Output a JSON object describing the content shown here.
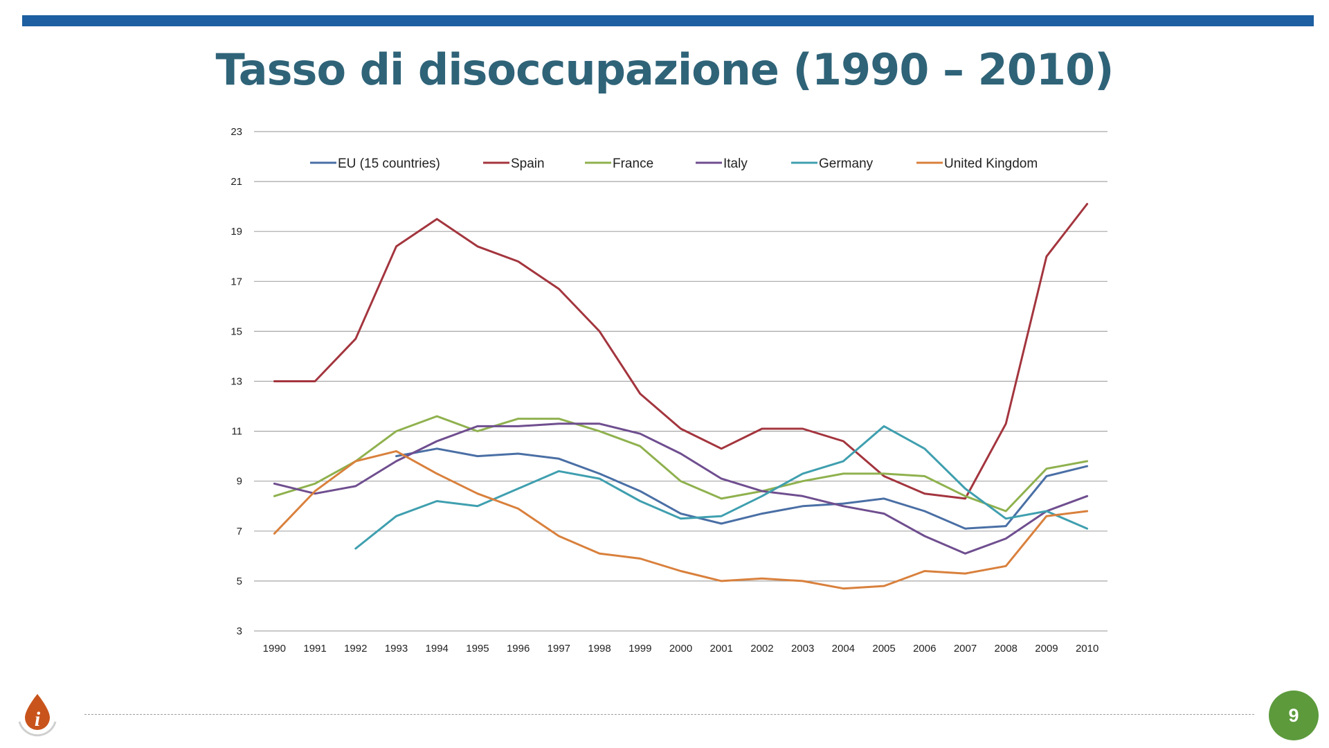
{
  "slide": {
    "title": "Tasso di disoccupazione (1990 – 2010)",
    "page_number": "9",
    "colors": {
      "top_bar": "#1d5fa0",
      "title": "#2f6378",
      "page_badge": "#5c9a3c",
      "info_icon": "#c8541c"
    },
    "icons": {
      "info": "info-icon"
    }
  },
  "chart_data": {
    "type": "line",
    "title": "",
    "xlabel": "",
    "ylabel": "",
    "categories": [
      "1990",
      "1991",
      "1992",
      "1993",
      "1994",
      "1995",
      "1996",
      "1997",
      "1998",
      "1999",
      "2000",
      "2001",
      "2002",
      "2003",
      "2004",
      "2005",
      "2006",
      "2007",
      "2008",
      "2009",
      "2010"
    ],
    "ylim": [
      3,
      23
    ],
    "yticks": [
      3,
      5,
      7,
      9,
      11,
      13,
      15,
      17,
      19,
      21,
      23
    ],
    "grid": true,
    "legend_position": "top",
    "series": [
      {
        "name": "EU (15 countries)",
        "color": "#4a6fa5",
        "values": [
          null,
          null,
          null,
          10.0,
          10.3,
          10.0,
          10.1,
          9.9,
          9.3,
          8.6,
          7.7,
          7.3,
          7.7,
          8.0,
          8.1,
          8.3,
          7.8,
          7.1,
          7.2,
          9.2,
          9.6
        ]
      },
      {
        "name": "Spain",
        "color": "#a3353e",
        "values": [
          13.0,
          13.0,
          14.7,
          18.4,
          19.5,
          18.4,
          17.8,
          16.7,
          15.0,
          12.5,
          11.1,
          10.3,
          11.1,
          11.1,
          10.6,
          9.2,
          8.5,
          8.3,
          11.3,
          18.0,
          20.1
        ]
      },
      {
        "name": "France",
        "color": "#8fb14e",
        "values": [
          8.4,
          8.9,
          9.8,
          11.0,
          11.6,
          11.0,
          11.5,
          11.5,
          11.0,
          10.4,
          9.0,
          8.3,
          8.6,
          9.0,
          9.3,
          9.3,
          9.2,
          8.4,
          7.8,
          9.5,
          9.8
        ]
      },
      {
        "name": "Italy",
        "color": "#6f4e8f",
        "values": [
          8.9,
          8.5,
          8.8,
          9.8,
          10.6,
          11.2,
          11.2,
          11.3,
          11.3,
          10.9,
          10.1,
          9.1,
          8.6,
          8.4,
          8.0,
          7.7,
          6.8,
          6.1,
          6.7,
          7.8,
          8.4
        ]
      },
      {
        "name": "Germany",
        "color": "#3f9faf",
        "values": [
          null,
          null,
          6.3,
          7.6,
          8.2,
          8.0,
          8.7,
          9.4,
          9.1,
          8.2,
          7.5,
          7.6,
          8.4,
          9.3,
          9.8,
          11.2,
          10.3,
          8.7,
          7.5,
          7.8,
          7.1
        ]
      },
      {
        "name": "United Kingdom",
        "color": "#d9803c",
        "values": [
          6.9,
          8.6,
          9.8,
          10.2,
          9.3,
          8.5,
          7.9,
          6.8,
          6.1,
          5.9,
          5.4,
          5.0,
          5.1,
          5.0,
          4.7,
          4.8,
          5.4,
          5.3,
          5.6,
          7.6,
          7.8
        ]
      }
    ]
  }
}
